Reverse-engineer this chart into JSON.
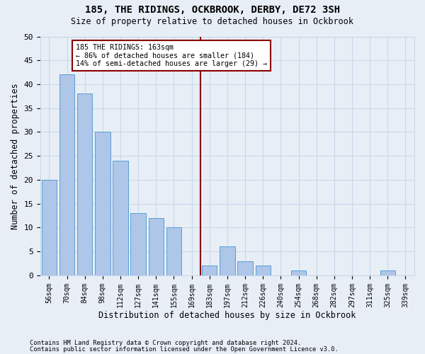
{
  "title": "185, THE RIDINGS, OCKBROOK, DERBY, DE72 3SH",
  "subtitle": "Size of property relative to detached houses in Ockbrook",
  "xlabel": "Distribution of detached houses by size in Ockbrook",
  "ylabel": "Number of detached properties",
  "bar_labels": [
    "56sqm",
    "70sqm",
    "84sqm",
    "98sqm",
    "112sqm",
    "127sqm",
    "141sqm",
    "155sqm",
    "169sqm",
    "183sqm",
    "197sqm",
    "212sqm",
    "226sqm",
    "240sqm",
    "254sqm",
    "268sqm",
    "282sqm",
    "297sqm",
    "311sqm",
    "325sqm",
    "339sqm"
  ],
  "bar_values": [
    20,
    42,
    38,
    30,
    24,
    13,
    12,
    10,
    0,
    2,
    6,
    3,
    2,
    0,
    1,
    0,
    0,
    0,
    0,
    1,
    0
  ],
  "bar_color": "#aec6e8",
  "bar_edge_color": "#5a9fd4",
  "vline_x": 8.5,
  "vline_color": "#8b0000",
  "annotation_text": "185 THE RIDINGS: 163sqm\n← 86% of detached houses are smaller (184)\n14% of semi-detached houses are larger (29) →",
  "annotation_box_color": "#8b0000",
  "annotation_fill": "white",
  "ylim": [
    0,
    50
  ],
  "yticks": [
    0,
    5,
    10,
    15,
    20,
    25,
    30,
    35,
    40,
    45,
    50
  ],
  "grid_color": "#c8d8ea",
  "bg_color": "#e8eef6",
  "footer1": "Contains HM Land Registry data © Crown copyright and database right 2024.",
  "footer2": "Contains public sector information licensed under the Open Government Licence v3.0."
}
